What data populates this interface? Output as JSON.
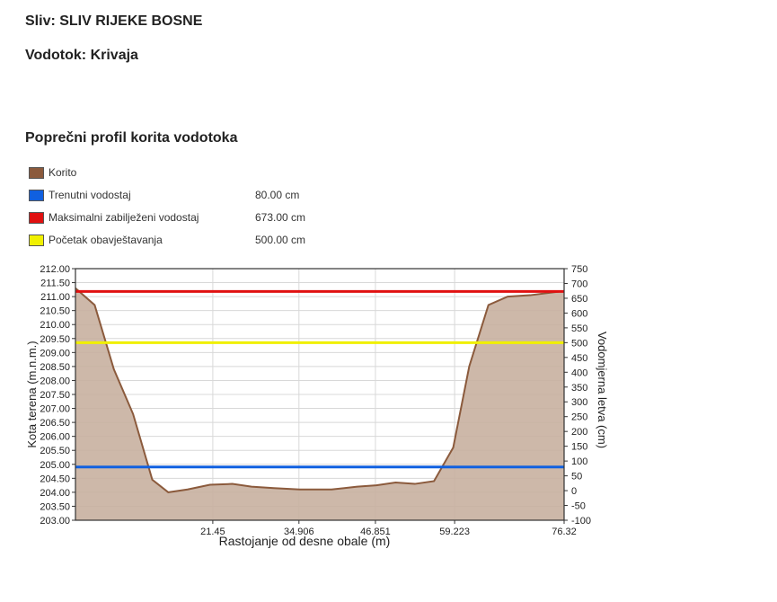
{
  "header": {
    "basin": "Sliv: SLIV RIJEKE BOSNE",
    "stream": "Vodotok: Krivaja"
  },
  "section_title": "Poprečni profil korita vodotoka",
  "legend": [
    {
      "label": "Korito",
      "value": "",
      "color": "#8b5a3c"
    },
    {
      "label": "Trenutni vodostaj",
      "value": "80.00 cm",
      "color": "#1060e0"
    },
    {
      "label": "Maksimalni zabilježeni vodostaj",
      "value": "673.00 cm",
      "color": "#e01010"
    },
    {
      "label": "Početak obavještavanja",
      "value": "500.00 cm",
      "color": "#f0f000"
    }
  ],
  "chart_data": {
    "type": "area",
    "xlabel": "Rastojanje od desne obale (m)",
    "ylabel": "Kota terena (m.n.m.)",
    "y2label": "Vodomjerna letva (cm)",
    "xlim": [
      0,
      76.32
    ],
    "ylim": [
      203.0,
      212.0
    ],
    "y2lim": [
      -100,
      750
    ],
    "x_ticks": [
      "21.45",
      "34.906",
      "46.851",
      "59.223",
      "76.32"
    ],
    "y_ticks": [
      "212.00",
      "211.50",
      "211.00",
      "210.50",
      "210.00",
      "209.50",
      "209.00",
      "208.50",
      "208.00",
      "207.50",
      "207.00",
      "206.50",
      "206.00",
      "205.50",
      "205.00",
      "204.50",
      "204.00",
      "203.50",
      "203.00"
    ],
    "y2_ticks": [
      "750",
      "700",
      "650",
      "600",
      "550",
      "500",
      "450",
      "400",
      "350",
      "300",
      "250",
      "200",
      "150",
      "100",
      "50",
      "0",
      "-50",
      "-100"
    ],
    "terrain": {
      "name": "Korito",
      "x": [
        0,
        3,
        6,
        9,
        12,
        14.5,
        17.5,
        21,
        24.5,
        27.5,
        31,
        35,
        40,
        44,
        47,
        50,
        53,
        56,
        59,
        61.5,
        64.5,
        67.5,
        71,
        76.32
      ],
      "y": [
        211.3,
        210.7,
        208.4,
        206.8,
        204.45,
        204.0,
        204.1,
        204.27,
        204.3,
        204.2,
        204.15,
        204.1,
        204.1,
        204.2,
        204.25,
        204.35,
        204.3,
        204.4,
        205.6,
        208.5,
        210.7,
        211.0,
        211.05,
        211.2
      ]
    },
    "levels": [
      {
        "name": "Trenutni vodostaj",
        "gauge_cm": 80,
        "color": "#1060e0"
      },
      {
        "name": "Maksimalni zabilježeni vodostaj",
        "gauge_cm": 673,
        "color": "#e01010"
      },
      {
        "name": "Početak obavještavanja",
        "gauge_cm": 500,
        "color": "#f0f000"
      }
    ],
    "grid": true
  }
}
